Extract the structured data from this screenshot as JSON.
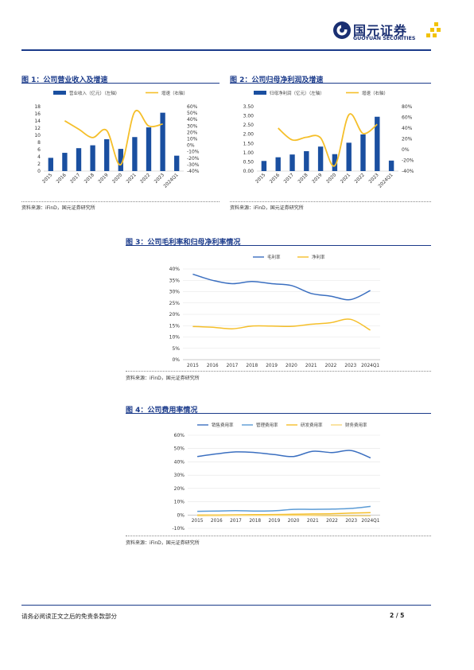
{
  "header": {
    "logo_cn": "国元证券",
    "logo_en": "GUOYUAN SECURITIES",
    "colors": {
      "navy": "#1a2f72",
      "gold": "#f2c200",
      "bar": "#1a4fa0",
      "line_gold": "#f5bf2a"
    }
  },
  "fig1": {
    "title": "图 1：公司营业收入及增速",
    "source": "资料来源：iFinD，国元证券研究所",
    "chart_data": {
      "type": "bar",
      "categories": [
        "2015",
        "2016",
        "2017",
        "2018",
        "2019",
        "2020",
        "2021",
        "2022",
        "2023",
        "2024Q1"
      ],
      "series": [
        {
          "name": "营业收入（亿元）（左轴）",
          "type": "bar",
          "values": [
            3.7,
            5.1,
            6.4,
            7.2,
            8.9,
            6.2,
            9.5,
            12.2,
            16.3,
            4.3
          ]
        },
        {
          "name": "增速（右轴）",
          "type": "line",
          "values": [
            null,
            38,
            25,
            12,
            23,
            -30,
            52,
            30,
            33,
            null
          ]
        }
      ],
      "ylim_left": [
        0,
        18
      ],
      "yticks_left": [
        0,
        2,
        4,
        6,
        8,
        10,
        12,
        14,
        16,
        18
      ],
      "ylim_right": [
        -40,
        60
      ],
      "yticks_right": [
        "-40%",
        "-30%",
        "-20%",
        "-10%",
        "0%",
        "10%",
        "20%",
        "30%",
        "40%",
        "50%",
        "60%"
      ]
    }
  },
  "fig2": {
    "title": "图 2：公司归母净利润及增速",
    "source": "资料来源：iFinD，国元证券研究所",
    "chart_data": {
      "type": "bar",
      "categories": [
        "2015",
        "2016",
        "2017",
        "2018",
        "2019",
        "2020",
        "2021",
        "2022",
        "2023",
        "2024Q1"
      ],
      "series": [
        {
          "name": "归母净利润（亿元）（左轴）",
          "type": "bar",
          "values": [
            0.55,
            0.75,
            0.9,
            1.08,
            1.33,
            0.92,
            1.54,
            1.99,
            2.95,
            0.57
          ]
        },
        {
          "name": "增速（右轴）",
          "type": "line",
          "values": [
            null,
            40,
            18,
            23,
            22,
            -30,
            65,
            30,
            47,
            null
          ]
        }
      ],
      "ylim_left": [
        0,
        3.5
      ],
      "yticks_left": [
        "0.00",
        "0.50",
        "1.00",
        "1.50",
        "2.00",
        "2.50",
        "3.00",
        "3.50"
      ],
      "ylim_right": [
        -40,
        80
      ],
      "yticks_right": [
        "-40%",
        "-20%",
        "0%",
        "20%",
        "40%",
        "60%",
        "80%"
      ]
    }
  },
  "fig3": {
    "title": "图 3：公司毛利率和归母净利率情况",
    "source": "资料来源：iFinD，国元证券研究所",
    "chart_data": {
      "type": "line",
      "categories": [
        "2015",
        "2016",
        "2017",
        "2018",
        "2019",
        "2020",
        "2021",
        "2022",
        "2023",
        "2024Q1"
      ],
      "series": [
        {
          "name": "毛利率",
          "color": "#3b6fc0",
          "values": [
            37.7,
            35.0,
            33.5,
            34.5,
            33.5,
            32.7,
            29.2,
            28.0,
            26.5,
            30.5
          ]
        },
        {
          "name": "净利率",
          "color": "#f5bf2a",
          "values": [
            14.6,
            14.3,
            13.6,
            14.8,
            14.8,
            14.7,
            15.6,
            16.3,
            17.8,
            13.0
          ]
        }
      ],
      "ylim": [
        0,
        40
      ],
      "yticks": [
        "0%",
        "5%",
        "10%",
        "15%",
        "20%",
        "25%",
        "30%",
        "35%",
        "40%"
      ]
    }
  },
  "fig4": {
    "title": "图 4：公司费用率情况",
    "source": "资料来源：iFinD，国元证券研究所",
    "chart_data": {
      "type": "line",
      "categories": [
        "2015",
        "2016",
        "2017",
        "2018",
        "2019",
        "2020",
        "2021",
        "2022",
        "2023",
        "2024Q1"
      ],
      "series": [
        {
          "name": "销售费用率",
          "color": "#3b6fc0",
          "values": [
            44,
            46,
            47.5,
            47,
            45.5,
            44,
            48,
            47,
            48.5,
            43
          ]
        },
        {
          "name": "管理费用率",
          "color": "#5b9bd5",
          "values": [
            2.8,
            3.0,
            3.3,
            3.0,
            3.2,
            4.3,
            4.3,
            4.5,
            5.0,
            6.5
          ]
        },
        {
          "name": "研发费用率",
          "color": "#f5bf2a",
          "values": [
            0.0,
            0.0,
            0.2,
            0.3,
            0.4,
            0.6,
            0.8,
            1.0,
            1.5,
            1.8
          ]
        },
        {
          "name": "财务费用率",
          "color": "#f7d77a",
          "values": [
            -0.5,
            -0.4,
            -0.3,
            -0.3,
            -0.2,
            -0.2,
            -0.3,
            -0.5,
            -0.6,
            -0.6
          ]
        }
      ],
      "ylim": [
        -10,
        60
      ],
      "yticks": [
        "-10%",
        "0%",
        "10%",
        "20%",
        "30%",
        "40%",
        "50%",
        "60%"
      ]
    }
  },
  "footer": {
    "disclaimer": "请务必阅读正文之后的免责条款部分",
    "page": "2 / 5"
  }
}
